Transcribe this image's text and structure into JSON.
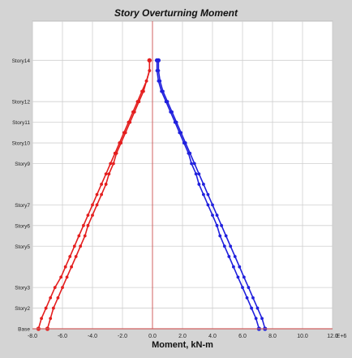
{
  "chart_data": {
    "type": "line",
    "title": "Story Overturning Moment",
    "xlabel": "Moment, kN-m",
    "x_scale_label": "E+6",
    "xlim": [
      -8.0,
      12.0
    ],
    "x_ticks": [
      "-8.0",
      "-6.0",
      "-4.0",
      "-2.0",
      "0.0",
      "2.0",
      "4.0",
      "6.0",
      "8.0",
      "10.0",
      "12.0"
    ],
    "y_categories": [
      "Base",
      "Story2",
      "Story3",
      "Story5",
      "Story6",
      "Story7",
      "Story9",
      "Story10",
      "Story11",
      "Story12",
      "Story14"
    ],
    "y_levels": [
      0,
      1,
      2,
      4,
      5,
      6,
      8,
      9,
      10,
      11,
      13
    ],
    "ylim": [
      0,
      14
    ],
    "grid": true,
    "colors": {
      "left": "#e41e1e",
      "right": "#2020dd",
      "zero_line": "#d06060",
      "background": "#d4d4d4",
      "plot_bg": "#ffffff",
      "grid": "#cfcfcf"
    },
    "series": [
      {
        "color": "#e41e1e",
        "points": [
          [
            -7.6,
            0
          ],
          [
            -7.4,
            0.5
          ],
          [
            -7.1,
            1
          ],
          [
            -6.8,
            1.5
          ],
          [
            -6.5,
            2
          ],
          [
            -6.1,
            2.5
          ],
          [
            -5.8,
            3
          ],
          [
            -5.5,
            3.5
          ],
          [
            -5.2,
            4
          ],
          [
            -4.9,
            4.5
          ],
          [
            -4.6,
            5
          ],
          [
            -4.3,
            5.5
          ],
          [
            -4.0,
            6
          ],
          [
            -3.7,
            6.5
          ],
          [
            -3.4,
            7
          ],
          [
            -3.1,
            7.5
          ],
          [
            -2.8,
            8
          ],
          [
            -2.5,
            8.5
          ],
          [
            -2.2,
            9
          ],
          [
            -1.9,
            9.5
          ],
          [
            -1.6,
            10
          ],
          [
            -1.3,
            10.5
          ],
          [
            -1.0,
            11
          ],
          [
            -0.7,
            11.5
          ],
          [
            -0.4,
            12
          ],
          [
            -0.2,
            12.5
          ],
          [
            -0.2,
            13
          ]
        ]
      },
      {
        "color": "#e41e1e",
        "points": [
          [
            -7.0,
            0
          ],
          [
            -6.8,
            0.5
          ],
          [
            -6.6,
            1
          ],
          [
            -6.3,
            1.5
          ],
          [
            -6.0,
            2
          ],
          [
            -5.7,
            2.5
          ],
          [
            -5.4,
            3
          ],
          [
            -5.1,
            3.5
          ],
          [
            -4.8,
            4
          ],
          [
            -4.5,
            4.5
          ],
          [
            -4.3,
            5
          ],
          [
            -4.0,
            5.5
          ],
          [
            -3.7,
            6
          ],
          [
            -3.4,
            6.5
          ],
          [
            -3.1,
            7
          ],
          [
            -2.9,
            7.5
          ],
          [
            -2.6,
            8
          ],
          [
            -2.4,
            8.5
          ],
          [
            -2.1,
            9
          ],
          [
            -1.8,
            9.5
          ],
          [
            -1.5,
            10
          ],
          [
            -1.2,
            10.5
          ],
          [
            -0.9,
            11
          ],
          [
            -0.6,
            11.5
          ],
          [
            -0.4,
            12
          ],
          [
            -0.2,
            12.5
          ],
          [
            -0.2,
            13
          ]
        ]
      },
      {
        "color": "#2020dd",
        "points": [
          [
            7.1,
            0
          ],
          [
            6.9,
            0.5
          ],
          [
            6.6,
            1
          ],
          [
            6.3,
            1.5
          ],
          [
            6.0,
            2
          ],
          [
            5.7,
            2.5
          ],
          [
            5.4,
            3
          ],
          [
            5.1,
            3.5
          ],
          [
            4.8,
            4
          ],
          [
            4.5,
            4.5
          ],
          [
            4.3,
            5
          ],
          [
            4.0,
            5.5
          ],
          [
            3.7,
            6
          ],
          [
            3.4,
            6.5
          ],
          [
            3.1,
            7
          ],
          [
            2.9,
            7.5
          ],
          [
            2.6,
            8
          ],
          [
            2.4,
            8.5
          ],
          [
            2.1,
            9
          ],
          [
            1.8,
            9.5
          ],
          [
            1.5,
            10
          ],
          [
            1.2,
            10.5
          ],
          [
            0.9,
            11
          ],
          [
            0.6,
            11.5
          ],
          [
            0.4,
            12
          ],
          [
            0.3,
            12.5
          ],
          [
            0.3,
            13
          ]
        ]
      },
      {
        "color": "#2020dd",
        "points": [
          [
            7.5,
            0
          ],
          [
            7.3,
            0.5
          ],
          [
            7.0,
            1
          ],
          [
            6.7,
            1.5
          ],
          [
            6.4,
            2
          ],
          [
            6.1,
            2.5
          ],
          [
            5.8,
            3
          ],
          [
            5.5,
            3.5
          ],
          [
            5.2,
            4
          ],
          [
            4.9,
            4.5
          ],
          [
            4.6,
            5
          ],
          [
            4.3,
            5.5
          ],
          [
            4.0,
            6
          ],
          [
            3.7,
            6.5
          ],
          [
            3.4,
            7
          ],
          [
            3.1,
            7.5
          ],
          [
            2.8,
            8
          ],
          [
            2.5,
            8.5
          ],
          [
            2.2,
            9
          ],
          [
            1.9,
            9.5
          ],
          [
            1.6,
            10
          ],
          [
            1.3,
            10.5
          ],
          [
            1.0,
            11
          ],
          [
            0.7,
            11.5
          ],
          [
            0.5,
            12
          ],
          [
            0.4,
            12.5
          ],
          [
            0.4,
            13
          ]
        ]
      }
    ]
  }
}
